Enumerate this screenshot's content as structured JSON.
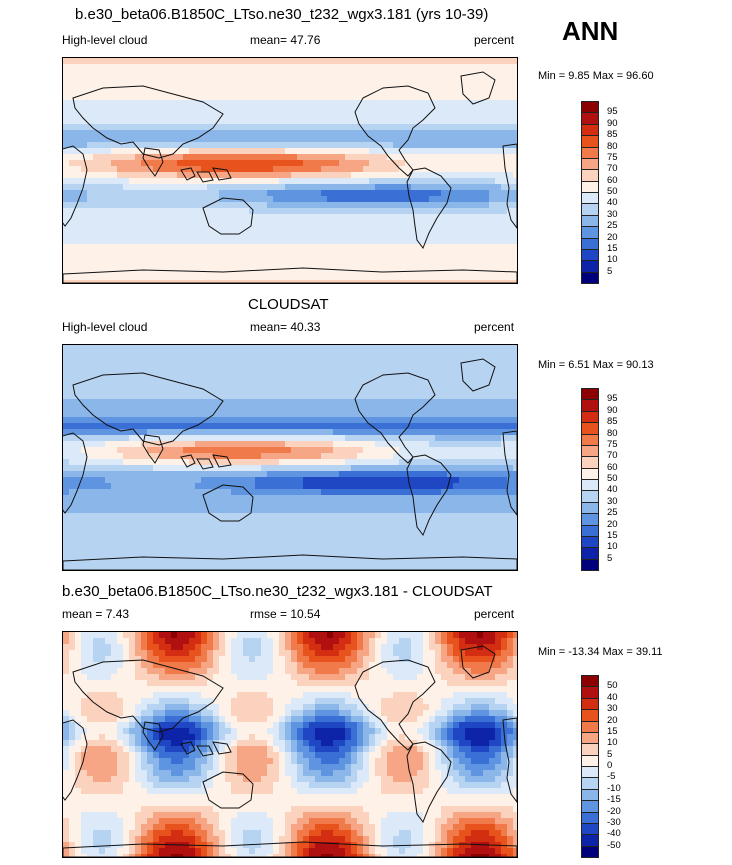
{
  "header": {
    "title": "b.e30_beta06.B1850C_LTso.ne30_t232_wgx3.181 (yrs 10-39)",
    "season": "ANN"
  },
  "panels": [
    {
      "id": "model",
      "title": "",
      "left_label": "High-level cloud",
      "center_label": "mean=  47.76",
      "right_label": "percent",
      "minmax": "Min =   9.85 Max =  96.60"
    },
    {
      "id": "obs",
      "title": "CLOUDSAT",
      "left_label": "High-level cloud",
      "center_label": "mean=  40.33",
      "right_label": "percent",
      "minmax": "Min =   6.51 Max =  90.13"
    },
    {
      "id": "diff",
      "title": "b.e30_beta06.B1850C_LTso.ne30_t232_wgx3.181 - CLOUDSAT",
      "left_label": "mean =   7.43",
      "center_label": "rmse =  10.54",
      "right_label": "percent",
      "minmax": "Min = -13.34 Max =  39.11"
    }
  ],
  "colorbars": {
    "absolute": {
      "labels": [
        "95",
        "90",
        "85",
        "80",
        "75",
        "70",
        "60",
        "50",
        "40",
        "30",
        "25",
        "20",
        "15",
        "10",
        "5"
      ],
      "colors": [
        "#8b0000",
        "#b01010",
        "#d42e12",
        "#e8531d",
        "#f07a4a",
        "#f6a585",
        "#fbd2bd",
        "#fdf1e8",
        "#dce9f8",
        "#b7d3f2",
        "#8ab6ea",
        "#5f95e0",
        "#3a6fd6",
        "#1f47c4",
        "#0d24a8",
        "#00007a"
      ]
    },
    "difference": {
      "labels": [
        "50",
        "40",
        "30",
        "20",
        "15",
        "10",
        "5",
        "0",
        "-5",
        "-10",
        "-15",
        "-20",
        "-30",
        "-40",
        "-50"
      ],
      "colors": [
        "#8b0000",
        "#b01010",
        "#d42e12",
        "#e8531d",
        "#f07a4a",
        "#f6a585",
        "#fbd2bd",
        "#fdf1e8",
        "#dce9f8",
        "#b7d3f2",
        "#8ab6ea",
        "#5f95e0",
        "#3a6fd6",
        "#1f47c4",
        "#0d24a8",
        "#00007a"
      ]
    }
  }
}
